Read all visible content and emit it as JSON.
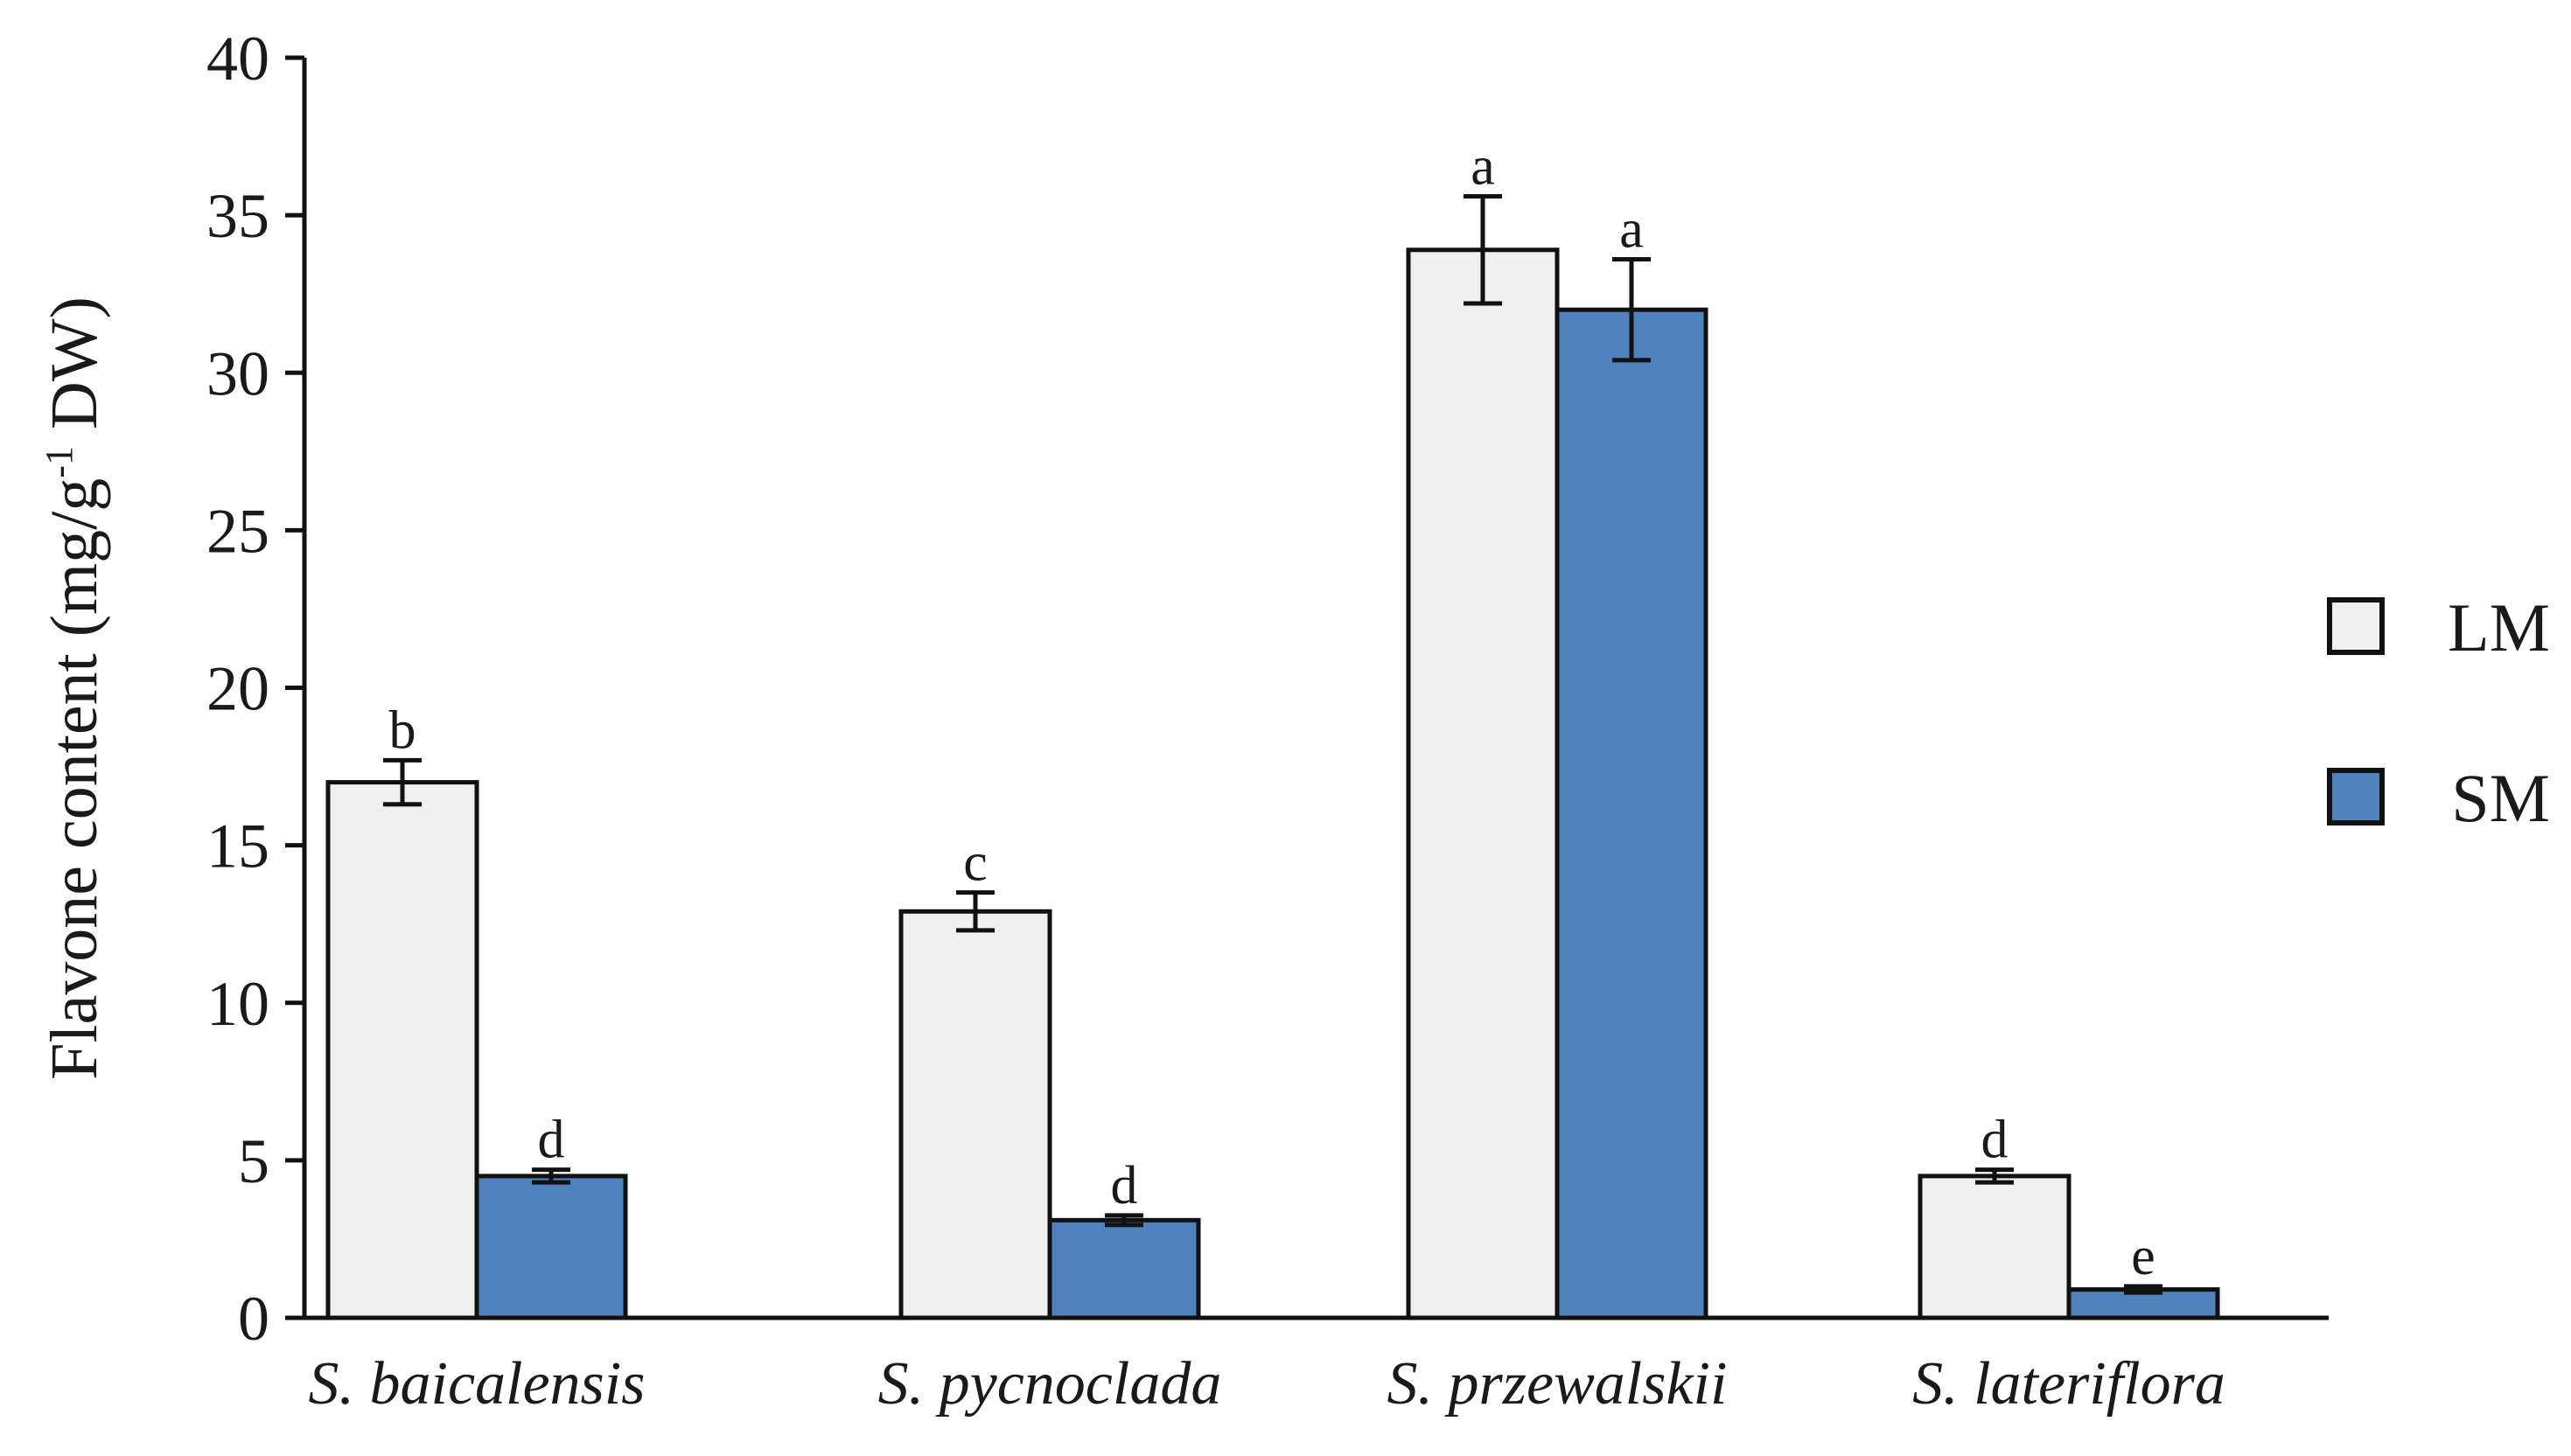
{
  "chart_data": {
    "type": "bar",
    "title": "",
    "xlabel": "",
    "ylabel": {
      "main": "Flavone content (mg/g",
      "sup": "-1",
      "suffix": " DW)"
    },
    "ylim": [
      0,
      40
    ],
    "yticks": [
      0,
      5,
      10,
      15,
      20,
      25,
      30,
      35,
      40
    ],
    "categories": [
      "S. baicalensis",
      "S. pycnoclada",
      "S. przewalskii",
      "S. lateriflora"
    ],
    "series": [
      {
        "name": "LM",
        "color": "#f0f0f0",
        "values": [
          17.0,
          12.9,
          33.9,
          4.5
        ],
        "errors": [
          0.7,
          0.6,
          1.7,
          0.2
        ],
        "significance": [
          "b",
          "c",
          "a",
          "d"
        ]
      },
      {
        "name": "SM",
        "color": "#4f81bd",
        "values": [
          4.5,
          3.1,
          32.0,
          0.9
        ],
        "errors": [
          0.2,
          0.15,
          1.6,
          0.1
        ],
        "significance": [
          "d",
          "d",
          "a",
          "e"
        ]
      }
    ],
    "legend": {
      "position": "right"
    },
    "grid": false
  }
}
